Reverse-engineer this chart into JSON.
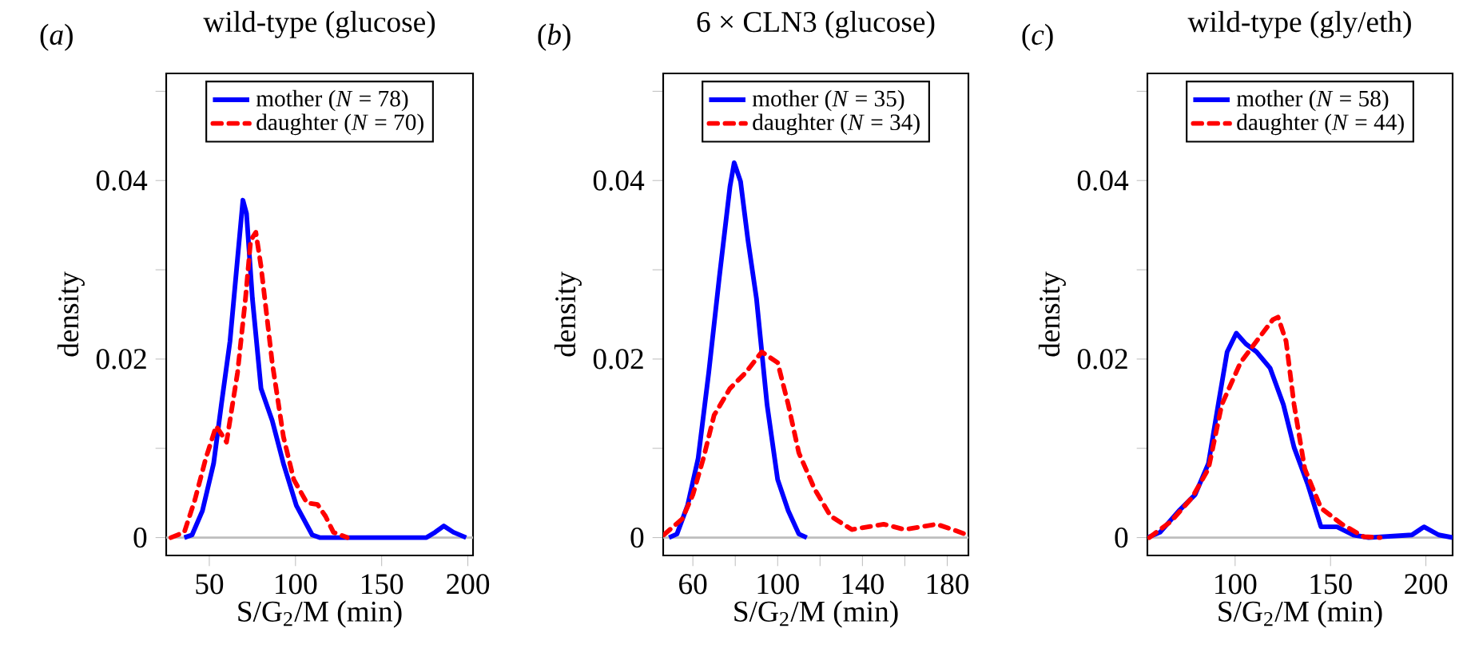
{
  "chart_data": [
    {
      "type": "line",
      "title": "wild-type (glucose)",
      "xlabel": "S/G$_{2}$/M (min)",
      "ylabel": "density",
      "annotations": [
        "(*a*)"
      ],
      "xlim": [
        25,
        203
      ],
      "xticks": [
        50,
        100,
        150,
        200
      ],
      "ylim": [
        -0.002,
        0.052
      ],
      "yticks": [
        0,
        {
          "value": 0.01,
          "label": null
        },
        0.02,
        {
          "value": 0.03,
          "label": null
        },
        0.04,
        {
          "value": 0.05,
          "label": null
        }
      ],
      "legend": "top",
      "marker": "none",
      "ref_lines": [
        {
          "axis": "y",
          "value": 0,
          "color": "#bebebe"
        }
      ],
      "series": [
        {
          "name": "mother (*N* = 78)",
          "color": "#0000ff",
          "line_style": "solid",
          "x": [
            35.5,
            40,
            46,
            52.5,
            57,
            62,
            66.5,
            69.5,
            71.6,
            75,
            80,
            86.5,
            93,
            100.5,
            109.7,
            114,
            176,
            181,
            186,
            191.6,
            199
          ],
          "values": [
            0,
            0.0003,
            0.003,
            0.0083,
            0.0149,
            0.022,
            0.0315,
            0.0378,
            0.0363,
            0.0268,
            0.0167,
            0.0131,
            0.0083,
            0.0036,
            0.0003,
            0,
            0,
            0.0006,
            0.0013,
            0.0006,
            0
          ]
        },
        {
          "name": "daughter (*N* = 70)",
          "color": "#ff0000",
          "line_style": "dashed",
          "x": [
            27.7,
            35.5,
            41.6,
            48,
            54,
            60,
            66.4,
            71,
            74,
            77,
            80,
            86.5,
            93,
            99,
            106.6,
            112.8,
            117.4,
            122,
            130
          ],
          "values": [
            0,
            0.0006,
            0.0042,
            0.0089,
            0.0125,
            0.0107,
            0.0185,
            0.0268,
            0.0333,
            0.0342,
            0.0304,
            0.0196,
            0.0113,
            0.0065,
            0.0039,
            0.0037,
            0.0024,
            0.0006,
            0
          ]
        }
      ]
    },
    {
      "type": "line",
      "title": "6 × CLN3 (glucose)",
      "xlabel": "S/G$_{2}$/M (min)",
      "ylabel": "density",
      "annotations": [
        "(*b*)"
      ],
      "xlim": [
        46,
        190
      ],
      "xticks": [
        60,
        {
          "value": 80,
          "label": null
        },
        100,
        {
          "value": 120,
          "label": null
        },
        140,
        {
          "value": 160,
          "label": null
        },
        180
      ],
      "ylim": [
        -0.002,
        0.052
      ],
      "yticks": [
        0,
        {
          "value": 0.01,
          "label": null
        },
        0.02,
        {
          "value": 0.03,
          "label": null
        },
        0.04,
        {
          "value": 0.05,
          "label": null
        }
      ],
      "legend": "top",
      "marker": "none",
      "ref_lines": [
        {
          "axis": "y",
          "value": 0,
          "color": "#bebebe"
        }
      ],
      "series": [
        {
          "name": "mother (*N* = 35)",
          "color": "#0000ff",
          "line_style": "solid",
          "x": [
            48.75,
            52.5,
            57.5,
            62.5,
            67.5,
            72.5,
            77.5,
            79.5,
            82.5,
            86,
            90,
            95,
            100,
            105,
            110,
            113.75
          ],
          "values": [
            0,
            0.0004,
            0.0036,
            0.0089,
            0.0185,
            0.0292,
            0.0393,
            0.042,
            0.0399,
            0.0333,
            0.0268,
            0.0149,
            0.0065,
            0.003,
            0.0004,
            0
          ]
        },
        {
          "name": "daughter (*N* = 34)",
          "color": "#ff0000",
          "line_style": "dashed",
          "x": [
            46.25,
            55,
            60,
            65,
            70,
            77.5,
            85,
            92.5,
            100,
            105,
            110,
            117.5,
            125,
            135,
            150,
            160,
            175,
            182.5,
            189.5
          ],
          "values": [
            0.0003,
            0.0021,
            0.0048,
            0.0089,
            0.0137,
            0.0167,
            0.0185,
            0.0208,
            0.0196,
            0.0149,
            0.0095,
            0.0054,
            0.0024,
            0.0009,
            0.0015,
            0.0009,
            0.0015,
            0.0009,
            0.0003
          ]
        }
      ]
    },
    {
      "type": "line",
      "title": "wild-type (gly/eth)",
      "xlabel": "S/G$_{2}$/M (min)",
      "ylabel": "density",
      "annotations": [
        "(*c*)"
      ],
      "xlim": [
        54,
        214
      ],
      "xticks": [
        100,
        150,
        200
      ],
      "ylim": [
        -0.002,
        0.052
      ],
      "yticks": [
        0,
        {
          "value": 0.01,
          "label": null
        },
        0.02,
        {
          "value": 0.03,
          "label": null
        },
        0.04,
        {
          "value": 0.05,
          "label": null
        }
      ],
      "legend": "top",
      "marker": "none",
      "ref_lines": [
        {
          "axis": "y",
          "value": 0,
          "color": "#bebebe"
        }
      ],
      "series": [
        {
          "name": "mother (*N* = 58)",
          "color": "#0000ff",
          "line_style": "solid",
          "x": [
            54,
            60.7,
            70.5,
            79,
            86,
            91.6,
            95.8,
            100.6,
            105.6,
            111.2,
            118.3,
            125.3,
            130.9,
            138,
            145,
            153.4,
            161.8,
            170,
            192.7,
            199,
            206.7,
            214
          ],
          "values": [
            0,
            0.0006,
            0.003,
            0.0048,
            0.0083,
            0.0155,
            0.0208,
            0.0229,
            0.0217,
            0.0208,
            0.019,
            0.0149,
            0.0101,
            0.006,
            0.0012,
            0.0012,
            0.0003,
            0,
            0.0003,
            0.0012,
            0.0003,
            0
          ]
        },
        {
          "name": "daughter (*N* = 44)",
          "color": "#ff0000",
          "line_style": "dashed",
          "x": [
            55,
            66.3,
            77.5,
            86,
            93,
            102.8,
            111.2,
            119.7,
            122.5,
            126.7,
            130.9,
            136.5,
            145,
            156,
            167.4,
            176
          ],
          "values": [
            0,
            0.0018,
            0.0045,
            0.0077,
            0.0149,
            0.0196,
            0.022,
            0.0244,
            0.0247,
            0.022,
            0.0149,
            0.0077,
            0.0033,
            0.0015,
            0.0001,
            0
          ]
        }
      ]
    }
  ]
}
